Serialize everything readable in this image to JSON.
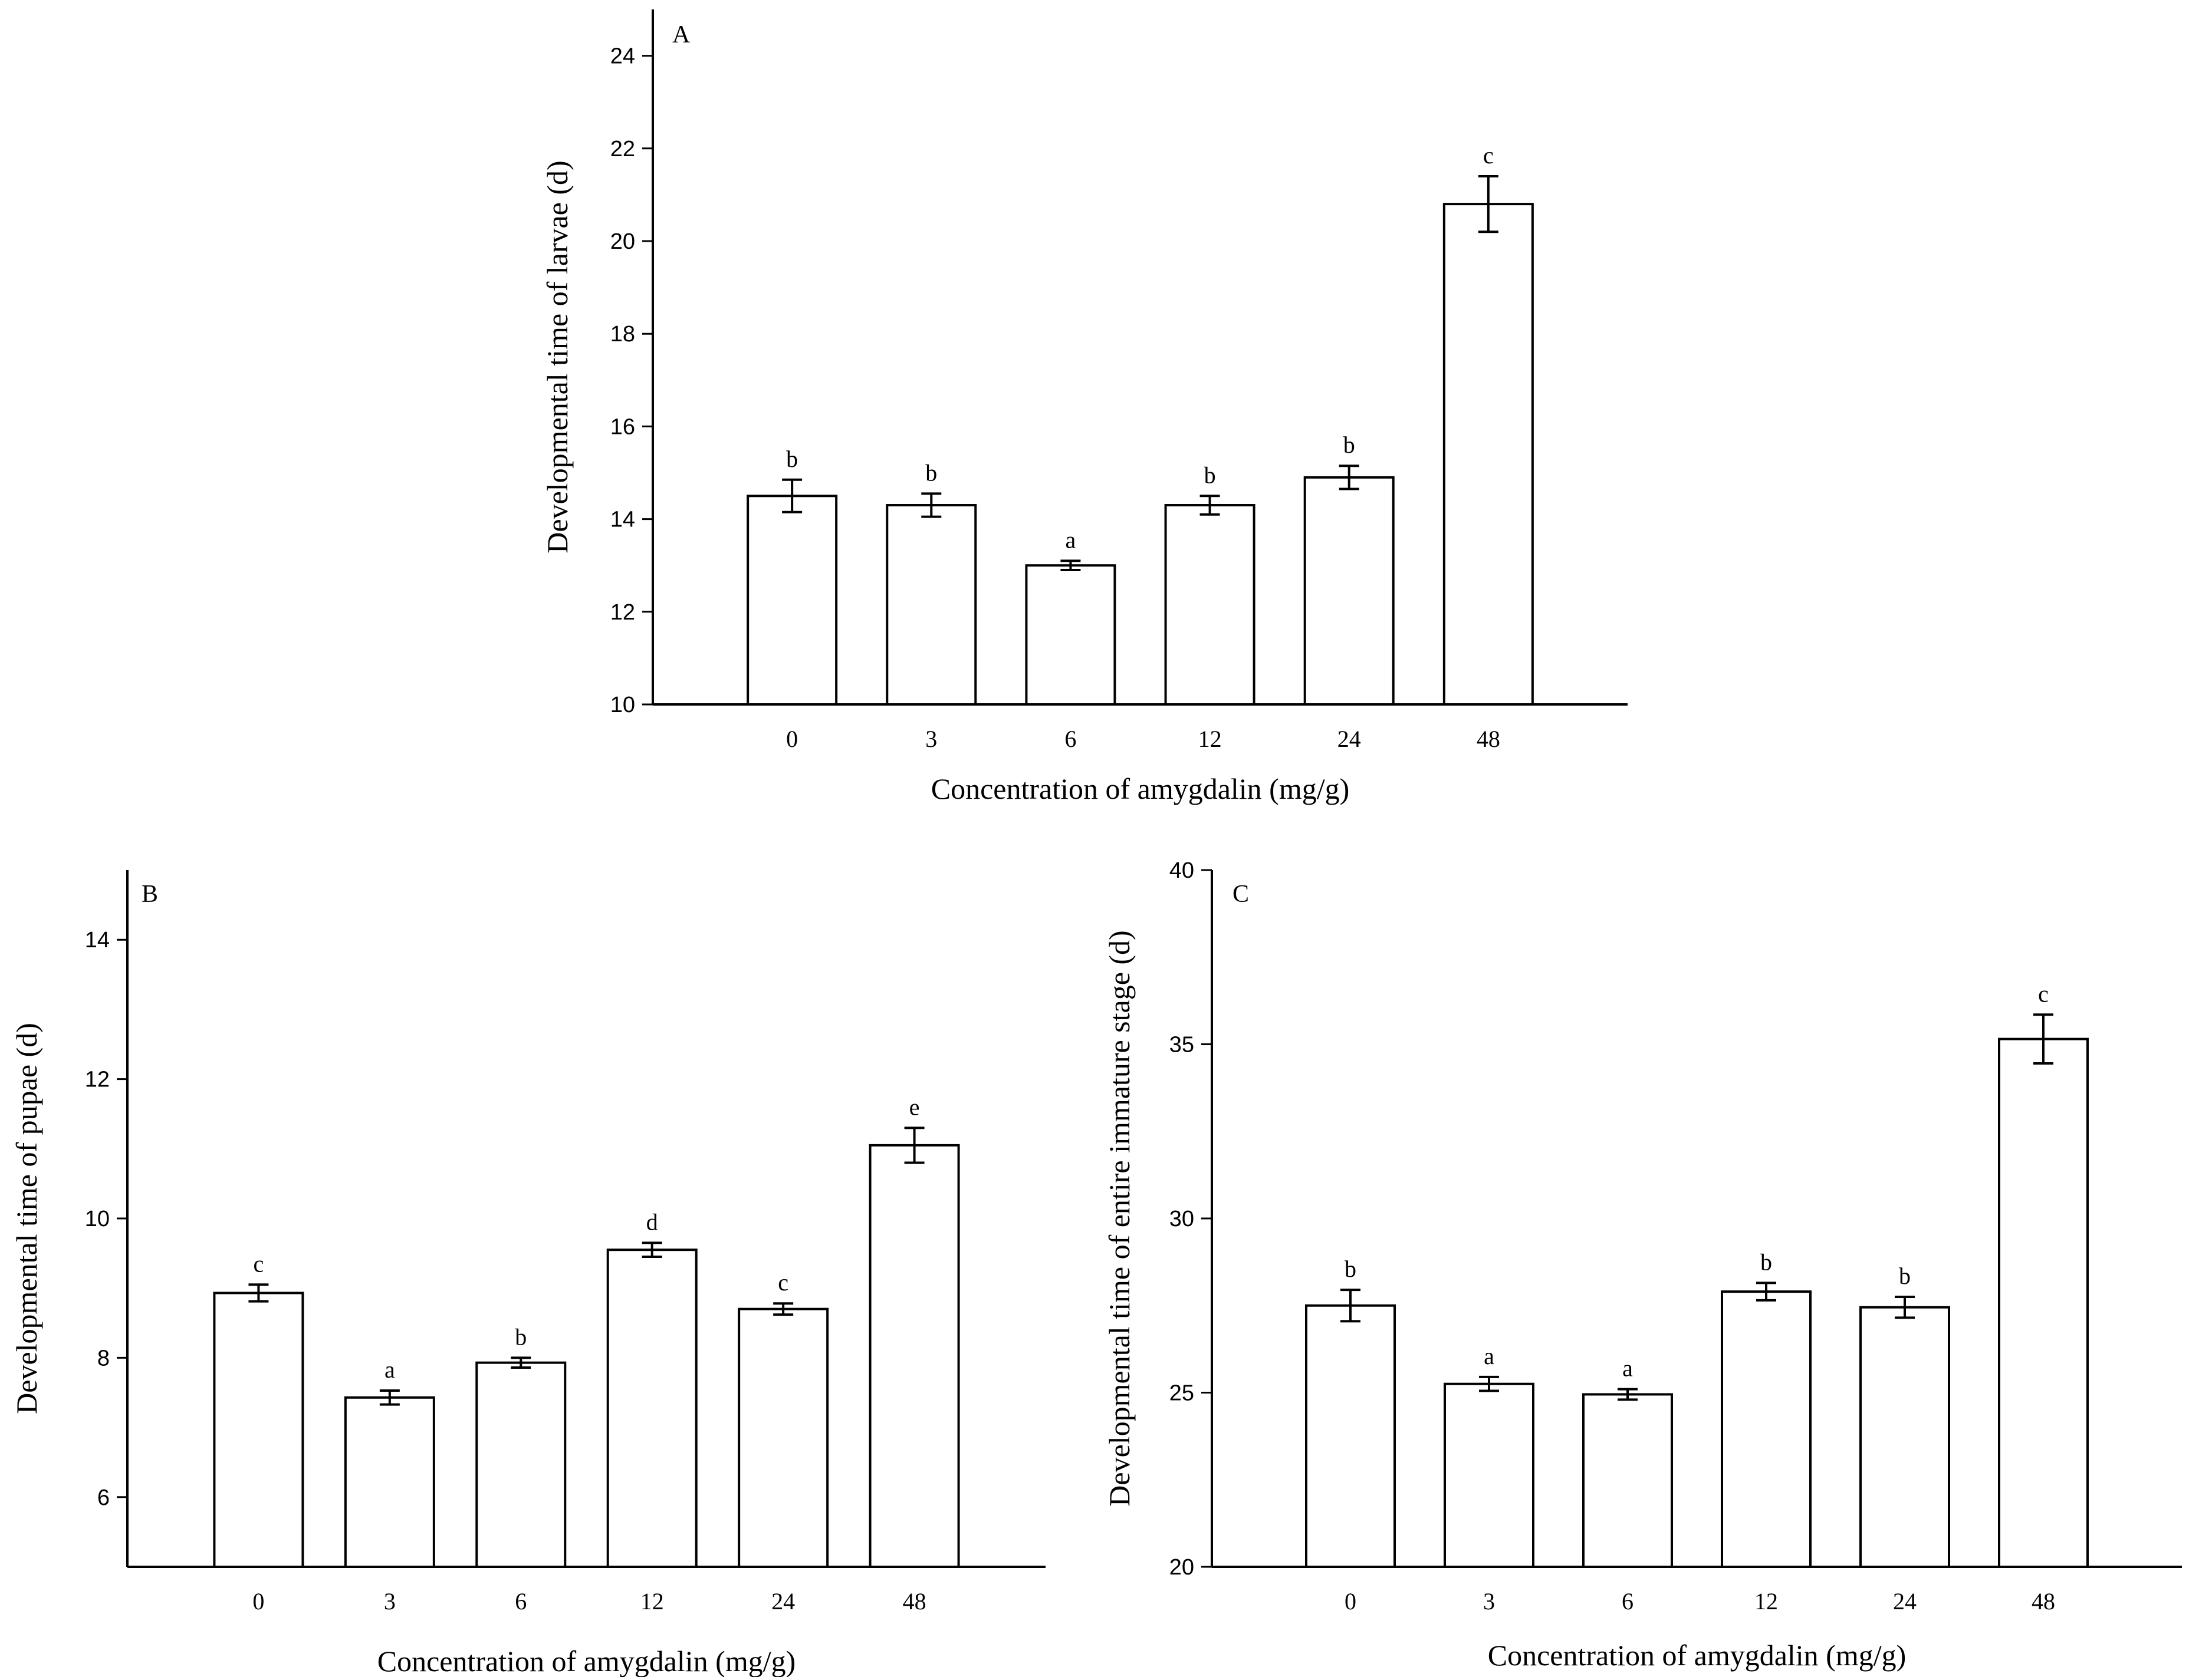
{
  "chart_data": [
    {
      "panel_label": "A",
      "type": "bar",
      "categories": [
        "0",
        "3",
        "6",
        "12",
        "24",
        "48"
      ],
      "values": [
        14.5,
        14.3,
        13.0,
        14.3,
        14.9,
        20.8
      ],
      "errors": [
        0.35,
        0.25,
        0.1,
        0.2,
        0.25,
        0.6
      ],
      "significance": [
        "b",
        "b",
        "a",
        "b",
        "b",
        "c"
      ],
      "xlabel": "Concentration of amygdalin (mg/g)",
      "ylabel": "Developmental time of larvae (d)",
      "ylim": [
        10,
        25
      ],
      "yticks": [
        10,
        12,
        14,
        16,
        18,
        20,
        22,
        24
      ],
      "grid": false
    },
    {
      "panel_label": "B",
      "type": "bar",
      "categories": [
        "0",
        "3",
        "6",
        "12",
        "24",
        "48"
      ],
      "values": [
        8.93,
        7.43,
        7.93,
        9.55,
        8.7,
        11.05
      ],
      "errors": [
        0.12,
        0.1,
        0.07,
        0.1,
        0.08,
        0.25
      ],
      "significance": [
        "c",
        "a",
        "b",
        "d",
        "c",
        "e"
      ],
      "xlabel": "Concentration of amygdalin (mg/g)",
      "ylabel": "Developmental time of pupae (d)",
      "ylim": [
        5,
        15
      ],
      "yticks": [
        6,
        8,
        10,
        12,
        14
      ],
      "grid": false
    },
    {
      "panel_label": "C",
      "type": "bar",
      "categories": [
        "0",
        "3",
        "6",
        "12",
        "24",
        "48"
      ],
      "values": [
        27.5,
        25.25,
        24.95,
        27.9,
        27.45,
        35.15
      ],
      "errors": [
        0.45,
        0.2,
        0.15,
        0.25,
        0.3,
        0.7
      ],
      "significance": [
        "b",
        "a",
        "a",
        "b",
        "b",
        "c"
      ],
      "xlabel": "Concentration of amygdalin (mg/g)",
      "ylabel": "Developmental time of entire immature stage (d)",
      "ylim": [
        20,
        40
      ],
      "yticks": [
        20,
        25,
        30,
        35,
        40
      ],
      "grid": false
    }
  ]
}
